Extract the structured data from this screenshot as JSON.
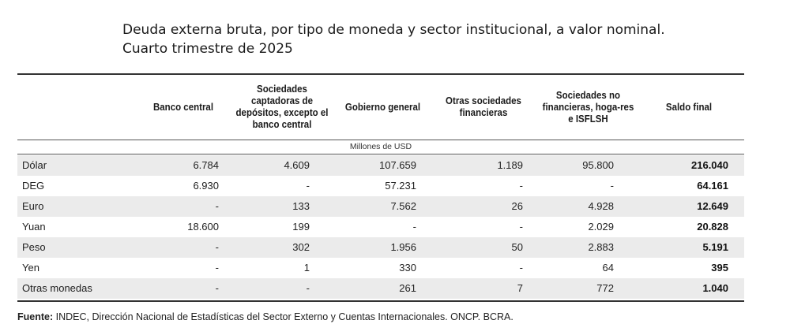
{
  "title": {
    "line1": "Deuda externa bruta, por tipo de moneda y sector institucional, a valor nominal.",
    "line2": "Cuarto trimestre de 2025"
  },
  "table": {
    "headers": [
      "Banco central",
      "Sociedades captadoras de depósitos, excepto el banco central",
      "Gobierno general",
      "Otras sociedades financieras",
      "Sociedades no financieras, hoga-res e ISFLSH",
      "Saldo final"
    ],
    "units": "Millones de USD",
    "rows": [
      {
        "label": "Dólar",
        "values": [
          "6.784",
          "4.609",
          "107.659",
          "1.189",
          "95.800",
          "216.040"
        ]
      },
      {
        "label": "DEG",
        "values": [
          "6.930",
          "-",
          "57.231",
          "-",
          "-",
          "64.161"
        ]
      },
      {
        "label": "Euro",
        "values": [
          "-",
          "133",
          "7.562",
          "26",
          "4.928",
          "12.649"
        ]
      },
      {
        "label": "Yuan",
        "values": [
          "18.600",
          "199",
          "-",
          "-",
          "2.029",
          "20.828"
        ]
      },
      {
        "label": "Peso",
        "values": [
          "-",
          "302",
          "1.956",
          "50",
          "2.883",
          "5.191"
        ]
      },
      {
        "label": "Yen",
        "values": [
          "-",
          "1",
          "330",
          "-",
          "64",
          "395"
        ]
      },
      {
        "label": "Otras monedas",
        "values": [
          "-",
          "-",
          "261",
          "7",
          "772",
          "1.040"
        ]
      }
    ]
  },
  "source": {
    "label": "Fuente:",
    "text": " INDEC, Dirección Nacional de Estadísticas del Sector Externo y Cuentas Internacionales. ONCP. BCRA."
  }
}
